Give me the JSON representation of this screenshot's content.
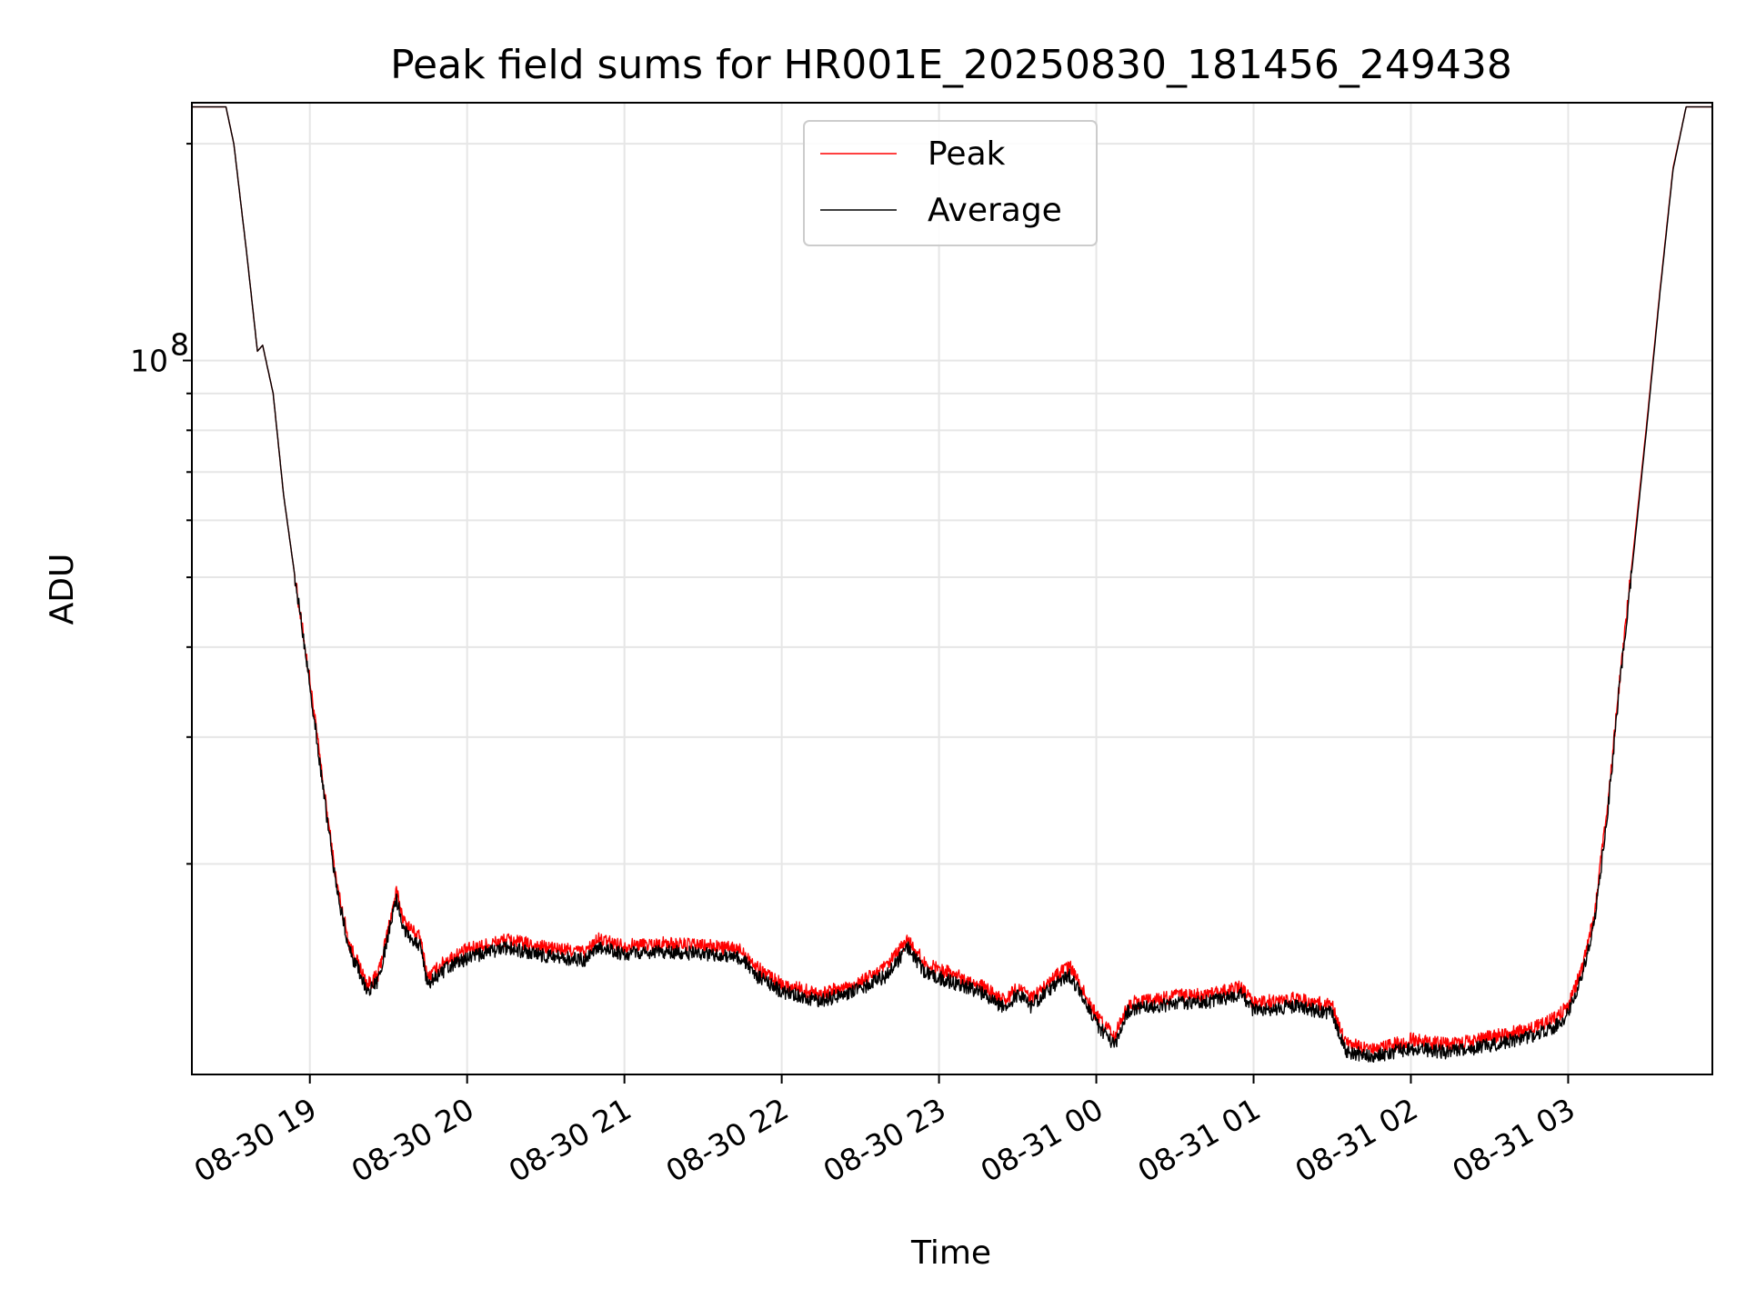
{
  "chart_data": {
    "type": "line",
    "title": "Peak field sums for HR001E_20250830_181456_249438",
    "xlabel": "Time",
    "ylabel": "ADU",
    "yscale": "log",
    "ylim": [
      10200000,
      228000000
    ],
    "xlim": [
      "2025-08-30 18:15",
      "2025-08-31 03:55"
    ],
    "grid": true,
    "legend_position": "top-center",
    "x_tick_labels": [
      "08-30 19",
      "08-30 20",
      "08-30 21",
      "08-30 22",
      "08-30 23",
      "08-31 00",
      "08-31 01",
      "08-31 02",
      "08-31 03"
    ],
    "y_tick_labels": [
      {
        "base": "10",
        "exp": "8"
      }
    ],
    "series": [
      {
        "name": "Peak",
        "color": "#ff0000",
        "points": [
          [
            "2025-08-30 18:15",
            225000000
          ],
          [
            "2025-08-30 18:28",
            225000000
          ],
          [
            "2025-08-30 18:31",
            200000000
          ],
          [
            "2025-08-30 18:36",
            140000000
          ],
          [
            "2025-08-30 18:40",
            103000000
          ],
          [
            "2025-08-30 18:42",
            105000000
          ],
          [
            "2025-08-30 18:46",
            90000000
          ],
          [
            "2025-08-30 18:50",
            65000000
          ],
          [
            "2025-08-30 18:55",
            48000000
          ],
          [
            "2025-08-30 19:00",
            36000000
          ],
          [
            "2025-08-30 19:05",
            26000000
          ],
          [
            "2025-08-30 19:10",
            19000000
          ],
          [
            "2025-08-30 19:15",
            15500000
          ],
          [
            "2025-08-30 19:22",
            13600000
          ],
          [
            "2025-08-30 19:26",
            14000000
          ],
          [
            "2025-08-30 19:33",
            18300000
          ],
          [
            "2025-08-30 19:36",
            16600000
          ],
          [
            "2025-08-30 19:42",
            15800000
          ],
          [
            "2025-08-30 19:45",
            13900000
          ],
          [
            "2025-08-30 19:52",
            14700000
          ],
          [
            "2025-08-30 20:00",
            15200000
          ],
          [
            "2025-08-30 20:15",
            15700000
          ],
          [
            "2025-08-30 20:30",
            15300000
          ],
          [
            "2025-08-30 20:45",
            15100000
          ],
          [
            "2025-08-30 20:50",
            15700000
          ],
          [
            "2025-08-30 21:00",
            15400000
          ],
          [
            "2025-08-30 21:15",
            15500000
          ],
          [
            "2025-08-30 21:30",
            15400000
          ],
          [
            "2025-08-30 21:45",
            15200000
          ],
          [
            "2025-08-30 21:50",
            14400000
          ],
          [
            "2025-08-30 22:00",
            13600000
          ],
          [
            "2025-08-30 22:15",
            13200000
          ],
          [
            "2025-08-30 22:30",
            13700000
          ],
          [
            "2025-08-30 22:40",
            14400000
          ],
          [
            "2025-08-30 22:48",
            15700000
          ],
          [
            "2025-08-30 22:55",
            14500000
          ],
          [
            "2025-08-30 23:05",
            14100000
          ],
          [
            "2025-08-30 23:15",
            13600000
          ],
          [
            "2025-08-30 23:25",
            12900000
          ],
          [
            "2025-08-30 23:30",
            13500000
          ],
          [
            "2025-08-30 23:35",
            13000000
          ],
          [
            "2025-08-30 23:45",
            14000000
          ],
          [
            "2025-08-30 23:50",
            14400000
          ],
          [
            "2025-08-31 00:00",
            12300000
          ],
          [
            "2025-08-31 00:07",
            11500000
          ],
          [
            "2025-08-31 00:12",
            12800000
          ],
          [
            "2025-08-31 00:30",
            13100000
          ],
          [
            "2025-08-31 00:45",
            13200000
          ],
          [
            "2025-08-31 00:55",
            13500000
          ],
          [
            "2025-08-31 01:00",
            12800000
          ],
          [
            "2025-08-31 01:15",
            13000000
          ],
          [
            "2025-08-31 01:30",
            12700000
          ],
          [
            "2025-08-31 01:35",
            11300000
          ],
          [
            "2025-08-31 01:45",
            11000000
          ],
          [
            "2025-08-31 02:00",
            11400000
          ],
          [
            "2025-08-31 02:15",
            11200000
          ],
          [
            "2025-08-31 02:30",
            11500000
          ],
          [
            "2025-08-31 02:45",
            11800000
          ],
          [
            "2025-08-31 02:55",
            12200000
          ],
          [
            "2025-08-31 03:00",
            12700000
          ],
          [
            "2025-08-31 03:05",
            14200000
          ],
          [
            "2025-08-31 03:10",
            17000000
          ],
          [
            "2025-08-31 03:15",
            24000000
          ],
          [
            "2025-08-31 03:20",
            37000000
          ],
          [
            "2025-08-31 03:25",
            55000000
          ],
          [
            "2025-08-31 03:30",
            82000000
          ],
          [
            "2025-08-31 03:35",
            125000000
          ],
          [
            "2025-08-31 03:40",
            185000000
          ],
          [
            "2025-08-31 03:45",
            225000000
          ],
          [
            "2025-08-31 03:55",
            225000000
          ]
        ]
      },
      {
        "name": "Average",
        "color": "#000000",
        "points": [
          [
            "2025-08-30 18:15",
            225000000
          ],
          [
            "2025-08-30 18:28",
            225000000
          ],
          [
            "2025-08-30 18:31",
            200000000
          ],
          [
            "2025-08-30 18:36",
            140000000
          ],
          [
            "2025-08-30 18:40",
            103000000
          ],
          [
            "2025-08-30 18:42",
            105000000
          ],
          [
            "2025-08-30 18:46",
            90000000
          ],
          [
            "2025-08-30 18:50",
            65000000
          ],
          [
            "2025-08-30 18:55",
            48000000
          ],
          [
            "2025-08-30 19:00",
            35500000
          ],
          [
            "2025-08-30 19:05",
            25500000
          ],
          [
            "2025-08-30 19:10",
            18700000
          ],
          [
            "2025-08-30 19:15",
            15200000
          ],
          [
            "2025-08-30 19:22",
            13300000
          ],
          [
            "2025-08-30 19:26",
            13700000
          ],
          [
            "2025-08-30 19:33",
            17900000
          ],
          [
            "2025-08-30 19:36",
            16200000
          ],
          [
            "2025-08-30 19:42",
            15400000
          ],
          [
            "2025-08-30 19:45",
            13600000
          ],
          [
            "2025-08-30 19:52",
            14300000
          ],
          [
            "2025-08-30 20:00",
            14800000
          ],
          [
            "2025-08-30 20:15",
            15300000
          ],
          [
            "2025-08-30 20:30",
            14900000
          ],
          [
            "2025-08-30 20:45",
            14700000
          ],
          [
            "2025-08-30 20:50",
            15300000
          ],
          [
            "2025-08-30 21:00",
            15000000
          ],
          [
            "2025-08-30 21:15",
            15100000
          ],
          [
            "2025-08-30 21:30",
            15000000
          ],
          [
            "2025-08-30 21:45",
            14800000
          ],
          [
            "2025-08-30 21:50",
            14000000
          ],
          [
            "2025-08-30 22:00",
            13300000
          ],
          [
            "2025-08-30 22:15",
            12900000
          ],
          [
            "2025-08-30 22:30",
            13400000
          ],
          [
            "2025-08-30 22:40",
            14000000
          ],
          [
            "2025-08-30 22:48",
            15300000
          ],
          [
            "2025-08-30 22:55",
            14100000
          ],
          [
            "2025-08-30 23:05",
            13700000
          ],
          [
            "2025-08-30 23:15",
            13300000
          ],
          [
            "2025-08-30 23:25",
            12600000
          ],
          [
            "2025-08-30 23:30",
            13200000
          ],
          [
            "2025-08-30 23:35",
            12700000
          ],
          [
            "2025-08-30 23:45",
            13700000
          ],
          [
            "2025-08-30 23:50",
            14000000
          ],
          [
            "2025-08-31 00:00",
            12000000
          ],
          [
            "2025-08-31 00:07",
            11200000
          ],
          [
            "2025-08-31 00:12",
            12500000
          ],
          [
            "2025-08-31 00:30",
            12800000
          ],
          [
            "2025-08-31 00:45",
            12900000
          ],
          [
            "2025-08-31 00:55",
            13200000
          ],
          [
            "2025-08-31 01:00",
            12500000
          ],
          [
            "2025-08-31 01:15",
            12700000
          ],
          [
            "2025-08-31 01:30",
            12400000
          ],
          [
            "2025-08-31 01:35",
            11000000
          ],
          [
            "2025-08-31 01:45",
            10800000
          ],
          [
            "2025-08-31 02:00",
            11100000
          ],
          [
            "2025-08-31 02:15",
            10950000
          ],
          [
            "2025-08-31 02:30",
            11200000
          ],
          [
            "2025-08-31 02:45",
            11500000
          ],
          [
            "2025-08-31 02:55",
            11900000
          ],
          [
            "2025-08-31 03:00",
            12400000
          ],
          [
            "2025-08-31 03:05",
            13900000
          ],
          [
            "2025-08-31 03:10",
            16600000
          ],
          [
            "2025-08-31 03:15",
            23500000
          ],
          [
            "2025-08-31 03:20",
            36500000
          ],
          [
            "2025-08-31 03:25",
            54000000
          ],
          [
            "2025-08-31 03:30",
            81000000
          ],
          [
            "2025-08-31 03:35",
            124000000
          ],
          [
            "2025-08-31 03:40",
            184000000
          ],
          [
            "2025-08-31 03:45",
            225000000
          ],
          [
            "2025-08-31 03:55",
            225000000
          ]
        ]
      }
    ]
  }
}
